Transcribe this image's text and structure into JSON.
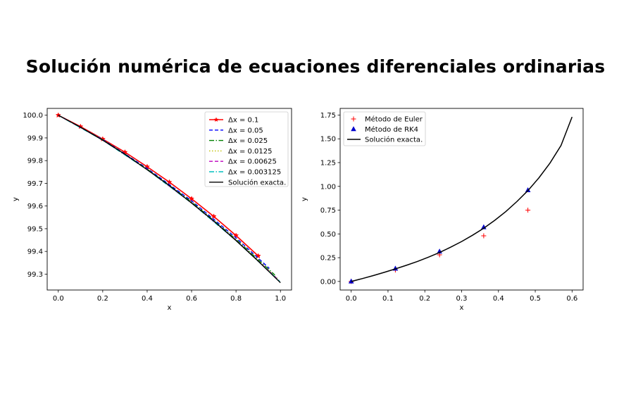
{
  "figure": {
    "title": "Solución numérica de ecuaciones diferenciales ordinarias"
  },
  "chart_data": [
    {
      "type": "line",
      "title": "",
      "xlabel": "x",
      "ylabel": "y",
      "xlim": [
        -0.05,
        1.05
      ],
      "ylim": [
        99.23,
        100.03
      ],
      "xticks": [
        "0.0",
        "0.2",
        "0.4",
        "0.6",
        "0.8",
        "1.0"
      ],
      "yticks": [
        "99.3",
        "99.4",
        "99.5",
        "99.6",
        "99.7",
        "99.8",
        "99.9",
        "100.0"
      ],
      "legend_position": "upper-right",
      "series": [
        {
          "name": "Δx = 0.1",
          "color": "#ff0000",
          "style": "solid-star",
          "x": [
            0.0,
            0.1,
            0.2,
            0.3,
            0.4,
            0.5,
            0.6,
            0.7,
            0.8,
            0.9
          ],
          "y": [
            100.0,
            99.95,
            99.895,
            99.837,
            99.773,
            99.705,
            99.632,
            99.554,
            99.47,
            99.38
          ]
        },
        {
          "name": "Δx = 0.05",
          "color": "#0000ff",
          "style": "dashed",
          "x": [
            0.0,
            0.2,
            0.4,
            0.6,
            0.8,
            0.95
          ],
          "y": [
            100.0,
            99.893,
            99.766,
            99.623,
            99.46,
            99.325
          ]
        },
        {
          "name": "Δx = 0.025",
          "color": "#008000",
          "style": "dashdot",
          "x": [
            0.0,
            0.2,
            0.4,
            0.6,
            0.8,
            0.975
          ],
          "y": [
            100.0,
            99.892,
            99.763,
            99.618,
            99.453,
            99.296
          ]
        },
        {
          "name": "Δx = 0.0125",
          "color": "#bfbf00",
          "style": "dotted",
          "x": [
            0.0,
            0.2,
            0.4,
            0.6,
            0.8,
            0.9875
          ],
          "y": [
            100.0,
            99.891,
            99.762,
            99.615,
            99.45,
            99.28
          ]
        },
        {
          "name": "Δx = 0.00625",
          "color": "#bf00bf",
          "style": "dashed",
          "x": [
            0.0,
            0.2,
            0.4,
            0.6,
            0.8,
            0.99375
          ],
          "y": [
            100.0,
            99.891,
            99.761,
            99.614,
            99.449,
            99.272
          ]
        },
        {
          "name": "Δx = 0.003125",
          "color": "#00bfbf",
          "style": "dashdot",
          "x": [
            0.0,
            0.2,
            0.4,
            0.6,
            0.8,
            0.996875
          ],
          "y": [
            100.0,
            99.89,
            99.76,
            99.613,
            99.448,
            99.268
          ]
        },
        {
          "name": "Solución exacta.",
          "color": "#000000",
          "style": "solid",
          "x": [
            0.0,
            0.1,
            0.2,
            0.3,
            0.4,
            0.5,
            0.6,
            0.7,
            0.8,
            0.9,
            1.0
          ],
          "y": [
            100.0,
            99.947,
            99.89,
            99.828,
            99.76,
            99.69,
            99.613,
            99.534,
            99.448,
            99.357,
            99.262
          ]
        }
      ]
    },
    {
      "type": "scatter",
      "title": "",
      "xlabel": "x",
      "ylabel": "y",
      "xlim": [
        -0.03,
        0.63
      ],
      "ylim": [
        -0.09,
        1.82
      ],
      "xticks": [
        "0.0",
        "0.1",
        "0.2",
        "0.3",
        "0.4",
        "0.5",
        "0.6"
      ],
      "yticks": [
        "0.00",
        "0.25",
        "0.50",
        "0.75",
        "1.00",
        "1.25",
        "1.50",
        "1.75"
      ],
      "legend_position": "upper-left",
      "series": [
        {
          "name": "Método de Euler",
          "color": "#ff0000",
          "marker": "plus",
          "x": [
            0.0,
            0.12,
            0.24,
            0.36,
            0.48
          ],
          "y": [
            0.0,
            0.12,
            0.28,
            0.48,
            0.75
          ]
        },
        {
          "name": "Método de RK4",
          "color": "#0000cc",
          "marker": "triangle",
          "x": [
            0.0,
            0.12,
            0.24,
            0.36,
            0.48
          ],
          "y": [
            0.0,
            0.135,
            0.315,
            0.57,
            0.96
          ]
        },
        {
          "name": "Solución exacta.",
          "color": "#000000",
          "marker": "line",
          "x": [
            0.0,
            0.03,
            0.06,
            0.09,
            0.12,
            0.15,
            0.18,
            0.21,
            0.24,
            0.27,
            0.3,
            0.33,
            0.36,
            0.39,
            0.42,
            0.45,
            0.48,
            0.51,
            0.54,
            0.57,
            0.6
          ],
          "y": [
            0.0,
            0.03,
            0.062,
            0.096,
            0.132,
            0.17,
            0.21,
            0.256,
            0.305,
            0.36,
            0.42,
            0.487,
            0.56,
            0.643,
            0.735,
            0.84,
            0.955,
            1.09,
            1.245,
            1.43,
            1.73
          ]
        }
      ]
    }
  ]
}
